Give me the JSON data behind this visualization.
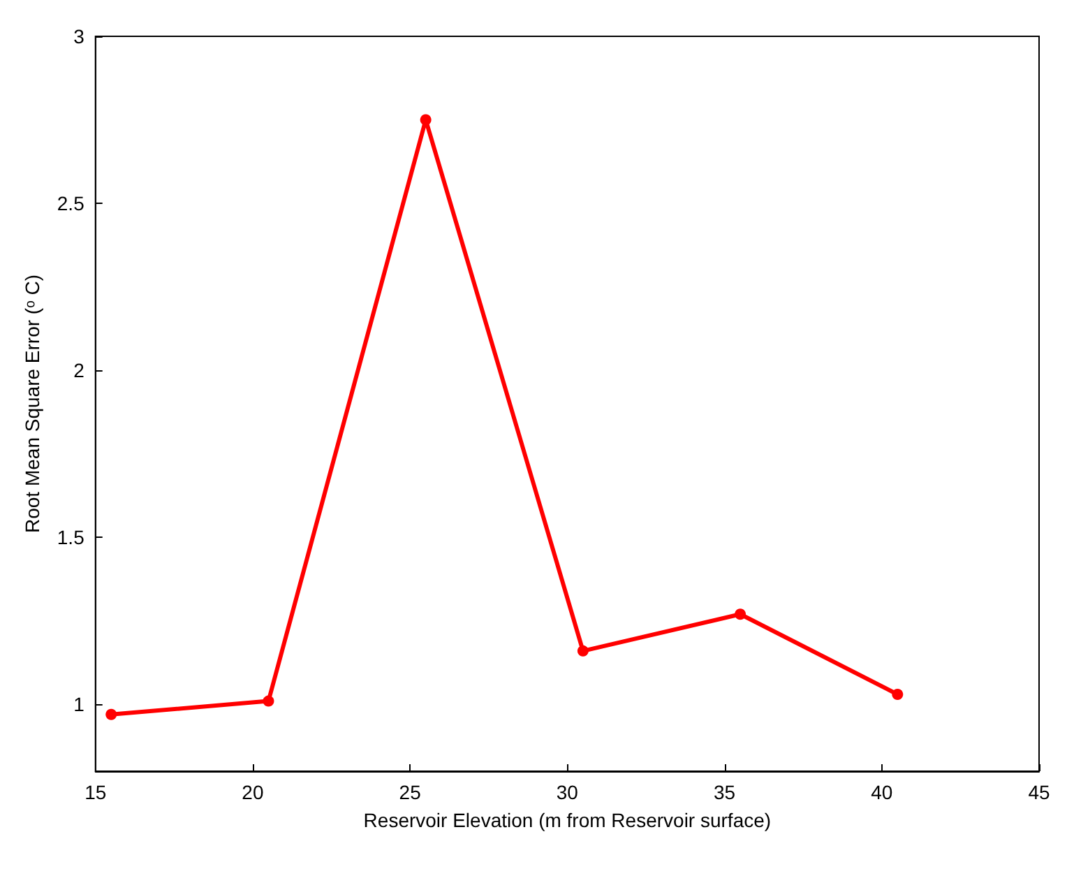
{
  "chart_data": {
    "type": "line",
    "xlabel": "Reservoir Elevation (m from Reservoir surface)",
    "ylabel": "Root Mean Square Error (ᵒ C)",
    "x": [
      15.5,
      20.5,
      25.5,
      30.5,
      35.5,
      40.5
    ],
    "series": [
      {
        "color": "#ff0000",
        "values": [
          0.97,
          1.01,
          2.75,
          1.16,
          1.27,
          1.03
        ]
      }
    ],
    "xlim": [
      15,
      45
    ],
    "xticks": [
      15,
      20,
      25,
      30,
      35,
      40,
      45
    ],
    "ylim": [
      0.8,
      3
    ],
    "yticks": [
      1,
      1.5,
      2,
      2.5,
      3
    ],
    "grid": false,
    "marker": "circle",
    "line_style": "solid"
  }
}
